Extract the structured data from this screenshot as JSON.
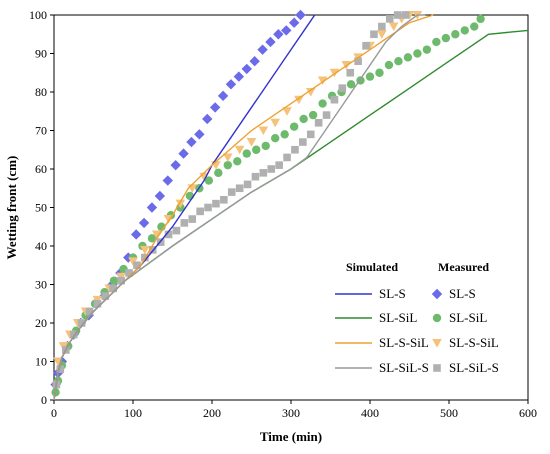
{
  "chart_data": {
    "type": "scatter",
    "xlabel": "Time (min)",
    "ylabel": "Wetting front (cm)",
    "xlim": [
      0,
      600
    ],
    "ylim": [
      0,
      100
    ],
    "xticks": [
      0,
      100,
      200,
      300,
      400,
      500,
      600
    ],
    "yticks": [
      0,
      10,
      20,
      30,
      40,
      50,
      60,
      70,
      80,
      90,
      100
    ],
    "grid": false,
    "legend": {
      "placement": "bottom-right",
      "simulated_header": "Simulated",
      "measured_header": "Measured"
    },
    "simulated": [
      {
        "name": "SL-S",
        "color": "#3333cc",
        "x": [
          0,
          5,
          10,
          20,
          30,
          50,
          70,
          90,
          110,
          130,
          150,
          170,
          190,
          200,
          220,
          240,
          260,
          280,
          300,
          320,
          330
        ],
        "y": [
          0,
          7,
          11,
          15,
          18,
          23,
          27,
          31,
          35,
          40,
          45,
          51,
          57,
          61,
          67,
          73,
          79,
          85,
          91,
          97,
          100
        ]
      },
      {
        "name": "SL-SiL",
        "color": "#2e8b2e",
        "x": [
          0,
          5,
          10,
          20,
          30,
          50,
          70,
          90,
          110,
          150,
          200,
          250,
          300,
          350,
          400,
          450,
          500,
          550,
          600
        ],
        "y": [
          0,
          7,
          11,
          15,
          18,
          23,
          27,
          31,
          34,
          40,
          47,
          54,
          60,
          67,
          74,
          81,
          88,
          95,
          96
        ]
      },
      {
        "name": "SL-S-SiL",
        "color": "#f0a030",
        "x": [
          0,
          5,
          10,
          20,
          30,
          50,
          70,
          90,
          110,
          130,
          150,
          170,
          200,
          250,
          300,
          350,
          400,
          450,
          480
        ],
        "y": [
          0,
          7,
          11,
          15,
          18,
          23,
          27,
          31,
          35,
          42,
          48,
          55,
          61,
          70,
          77,
          84,
          91,
          98,
          100
        ]
      },
      {
        "name": "SL-SiL-S",
        "color": "#999999",
        "x": [
          0,
          5,
          10,
          20,
          30,
          50,
          70,
          90,
          110,
          150,
          200,
          250,
          300,
          320,
          340,
          360,
          380,
          400,
          420,
          440,
          460,
          470
        ],
        "y": [
          0,
          7,
          11,
          15,
          18,
          23,
          27,
          31,
          34,
          40,
          47,
          54,
          60,
          63,
          69,
          75,
          81,
          87,
          93,
          97,
          100,
          100
        ]
      }
    ],
    "measured": [
      {
        "name": "SL-S",
        "marker": "diamond",
        "color": "#6b6bea",
        "x": [
          2,
          5,
          10,
          17,
          25,
          34,
          44,
          54,
          64,
          74,
          84,
          94,
          104,
          114,
          124,
          134,
          144,
          154,
          164,
          174,
          184,
          194,
          204,
          214,
          224,
          234,
          244,
          254,
          264,
          274,
          284,
          294,
          304,
          312
        ],
        "y": [
          4,
          7,
          10,
          14,
          17,
          20,
          22,
          25,
          27,
          30,
          33,
          37,
          43,
          46,
          50,
          53,
          57,
          61,
          64,
          67,
          69,
          73,
          76,
          79,
          82,
          84,
          86,
          88,
          91,
          93,
          95,
          96,
          98,
          100
        ]
      },
      {
        "name": "SL-SiL",
        "marker": "circle",
        "color": "#6dba6d",
        "x": [
          2,
          5,
          10,
          18,
          28,
          40,
          52,
          64,
          76,
          88,
          100,
          112,
          124,
          136,
          148,
          160,
          172,
          184,
          196,
          208,
          220,
          232,
          244,
          256,
          268,
          280,
          292,
          304,
          316,
          328,
          340,
          352,
          364,
          376,
          388,
          400,
          412,
          424,
          436,
          448,
          460,
          472,
          484,
          496,
          508,
          520,
          532,
          540
        ],
        "y": [
          2,
          5,
          9,
          14,
          18,
          22,
          25,
          28,
          31,
          34,
          37,
          40,
          42,
          45,
          48,
          50,
          53,
          55,
          57,
          59,
          61,
          62,
          64,
          65,
          66,
          68,
          69,
          71,
          73,
          74,
          77,
          79,
          80,
          82,
          83,
          84,
          85,
          87,
          88,
          89,
          90,
          91,
          93,
          94,
          95,
          96,
          97,
          99
        ]
      },
      {
        "name": "SL-S-SiL",
        "marker": "triangle-down",
        "color": "#f5c27a",
        "x": [
          5,
          12,
          20,
          30,
          40,
          55,
          70,
          85,
          100,
          115,
          130,
          145,
          160,
          175,
          190,
          205,
          220,
          235,
          250,
          265,
          280,
          295,
          310,
          325,
          340,
          355,
          370,
          385,
          400,
          415,
          430,
          440,
          450,
          460
        ],
        "y": [
          10,
          14,
          17,
          20,
          23,
          26,
          29,
          32,
          36,
          39,
          43,
          47,
          51,
          55,
          58,
          61,
          63,
          65,
          67,
          70,
          72,
          75,
          78,
          80,
          83,
          85,
          87,
          89,
          92,
          95,
          97,
          99,
          100,
          100
        ]
      },
      {
        "name": "SL-SiL-S",
        "marker": "square",
        "color": "#b0b0b0",
        "x": [
          3,
          8,
          15,
          25,
          35,
          45,
          55,
          65,
          75,
          85,
          95,
          105,
          115,
          125,
          135,
          145,
          155,
          165,
          175,
          185,
          195,
          205,
          215,
          225,
          235,
          245,
          255,
          265,
          275,
          285,
          295,
          305,
          315,
          325,
          335,
          345,
          355,
          365,
          375,
          385,
          395,
          405,
          415,
          425,
          435,
          445
        ],
        "y": [
          4,
          8,
          13,
          17,
          20,
          23,
          25,
          27,
          29,
          31,
          33,
          35,
          37,
          39,
          41,
          43,
          44,
          46,
          47,
          49,
          50,
          51,
          52,
          54,
          55,
          56,
          58,
          59,
          60,
          61,
          63,
          65,
          67,
          69,
          72,
          74,
          78,
          81,
          85,
          88,
          92,
          95,
          97,
          99,
          100,
          100
        ]
      }
    ]
  }
}
